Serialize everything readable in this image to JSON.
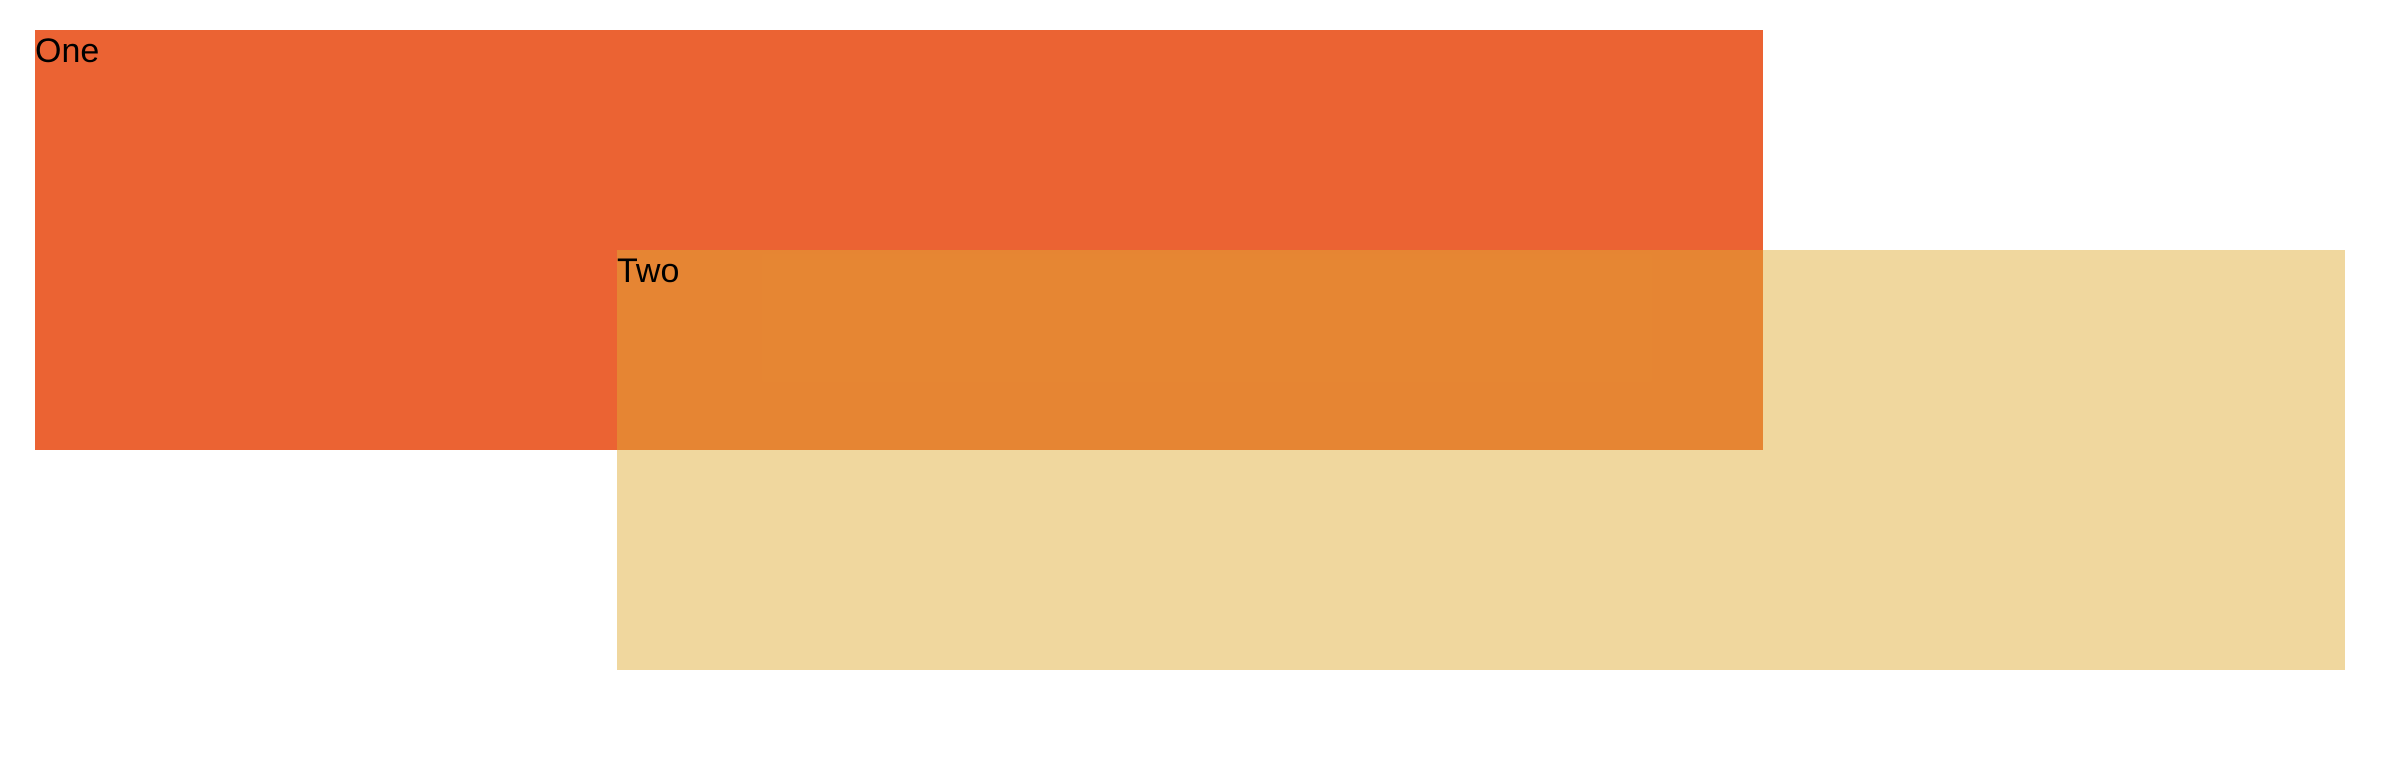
{
  "boxes": [
    {
      "label": "One",
      "color": "#eb6333"
    },
    {
      "label": "Two",
      "color": "rgba(224, 172, 52, 0.48)"
    }
  ]
}
